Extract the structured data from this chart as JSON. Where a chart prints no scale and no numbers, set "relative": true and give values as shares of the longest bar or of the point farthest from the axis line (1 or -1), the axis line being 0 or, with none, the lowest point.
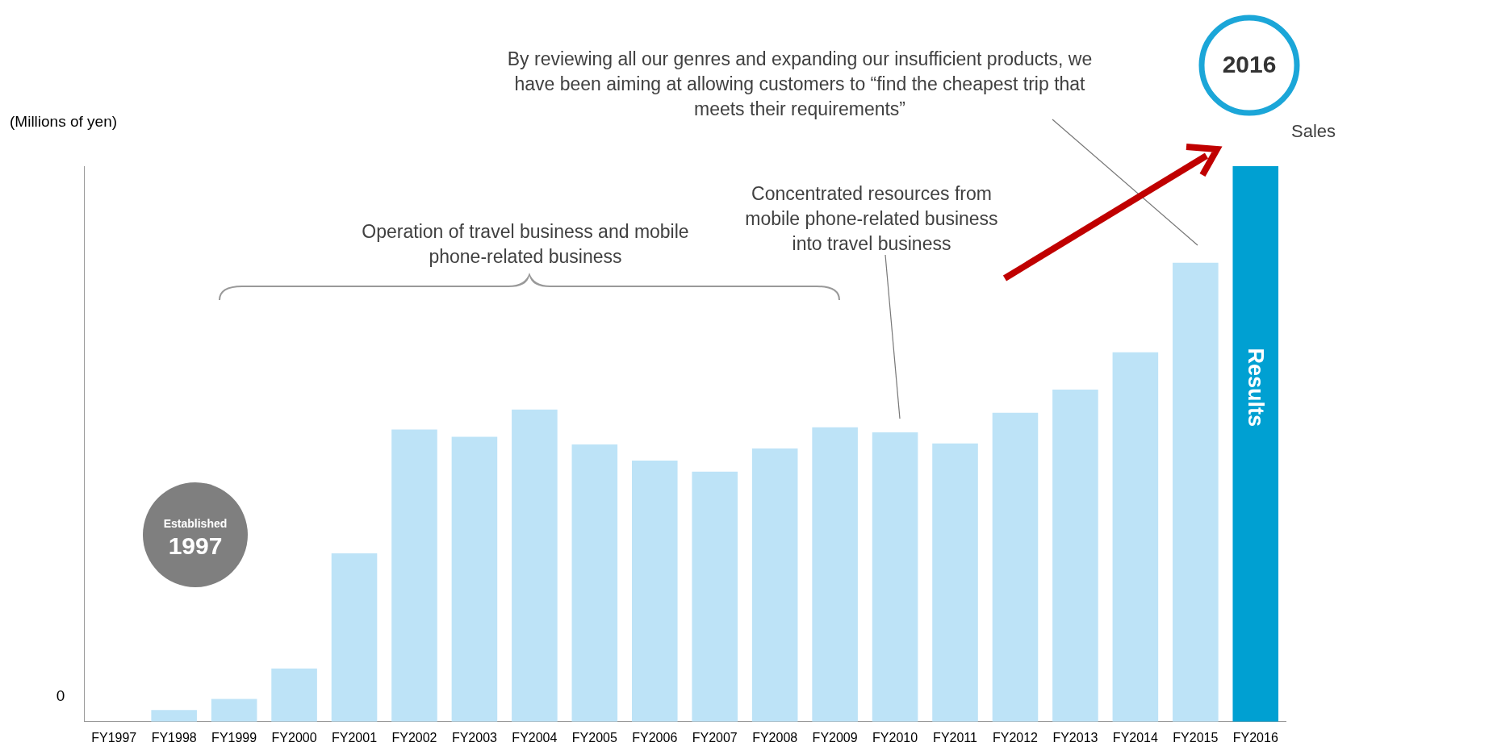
{
  "chart_data": {
    "type": "bar",
    "relative": true,
    "ylabel": "(Millions of yen)",
    "categories": [
      "FY1997",
      "FY1998",
      "FY1999",
      "FY2000",
      "FY2001",
      "FY2002",
      "FY2003",
      "FY2004",
      "FY2005",
      "FY2006",
      "FY2007",
      "FY2008",
      "FY2009",
      "FY2010",
      "FY2011",
      "FY2012",
      "FY2013",
      "FY2014",
      "FY2015",
      "FY2016"
    ],
    "values": [
      0,
      0.021,
      0.041,
      0.096,
      0.303,
      0.526,
      0.513,
      0.562,
      0.499,
      0.47,
      0.45,
      0.492,
      0.53,
      0.521,
      0.501,
      0.556,
      0.598,
      0.665,
      0.826,
      1
    ],
    "colors": [
      "#bde3f7",
      "#bde3f7",
      "#bde3f7",
      "#bde3f7",
      "#bde3f7",
      "#bde3f7",
      "#bde3f7",
      "#bde3f7",
      "#bde3f7",
      "#bde3f7",
      "#bde3f7",
      "#bde3f7",
      "#bde3f7",
      "#bde3f7",
      "#bde3f7",
      "#bde3f7",
      "#bde3f7",
      "#bde3f7",
      "#bde3f7",
      "#00a0d2"
    ],
    "annotations": [
      "By reviewing all our genres and expanding our insufficient products, we have been aiming at allowing customers to “find the cheapest trip that meets their requirements”",
      "Operation of travel business and mobile phone-related business",
      "Concentrated resources from mobile phone-related business into travel business",
      "Established",
      "1997",
      "2016",
      "Sales",
      "Results",
      "0"
    ],
    "legend": false
  }
}
